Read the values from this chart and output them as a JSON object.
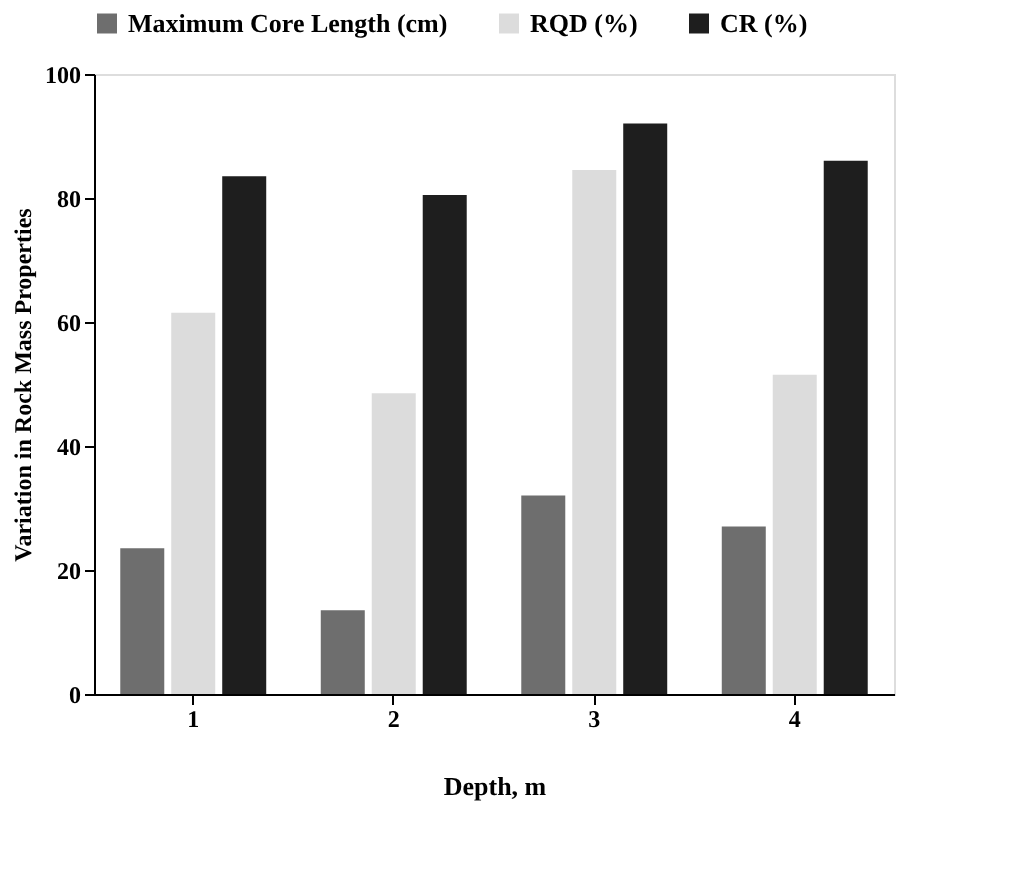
{
  "chart_data": {
    "type": "bar",
    "xlabel": "Depth, m",
    "ylabel": "Variation in Rock Mass Properties",
    "categories": [
      "1",
      "2",
      "3",
      "4"
    ],
    "series": [
      {
        "name": "Maximum Core Length (cm)",
        "color": "#6e6e6e",
        "values": [
          23.5,
          13.5,
          32,
          27
        ]
      },
      {
        "name": "RQD (%)",
        "color": "#dcdcdc",
        "values": [
          61.5,
          48.5,
          84.5,
          51.5
        ]
      },
      {
        "name": "CR (%)",
        "color": "#1e1e1e",
        "values": [
          83.5,
          80.5,
          92,
          86
        ]
      }
    ],
    "ylim": [
      0,
      100
    ],
    "yticks": [
      0,
      20,
      40,
      60,
      80,
      100
    ],
    "grid": false,
    "legend": "top"
  }
}
